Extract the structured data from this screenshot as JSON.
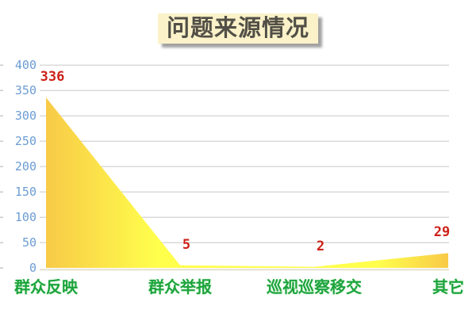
{
  "chart_data": {
    "type": "area",
    "title": "问题来源情况",
    "categories": [
      "群众反映",
      "群众举报",
      "巡视巡察移交",
      "其它"
    ],
    "values": [
      336,
      5,
      2,
      29
    ],
    "value_labels": [
      "336",
      "5",
      "2",
      "29"
    ],
    "ylim": [
      0,
      400
    ],
    "ytick_step": 50,
    "yticks": [
      "0",
      "50",
      "100",
      "150",
      "200",
      "250",
      "300",
      "350",
      "400"
    ],
    "grid": true,
    "legend_position": "none",
    "colors": {
      "background": "#ffffff",
      "title_bg": "#fbf2c9",
      "title_text": "#514f46",
      "title_shadow": "#a2a2a2",
      "gridline": "#dadada",
      "axis_tick": "#c9c9c9",
      "baseline": "#e9e5d6",
      "ytick_label": "#6b9cd4",
      "category_label": "#1ca43c",
      "value_label": "#cc2118",
      "area_edge_gold": "#f8ca47",
      "area_center_yellow": "#ffff4c"
    }
  }
}
